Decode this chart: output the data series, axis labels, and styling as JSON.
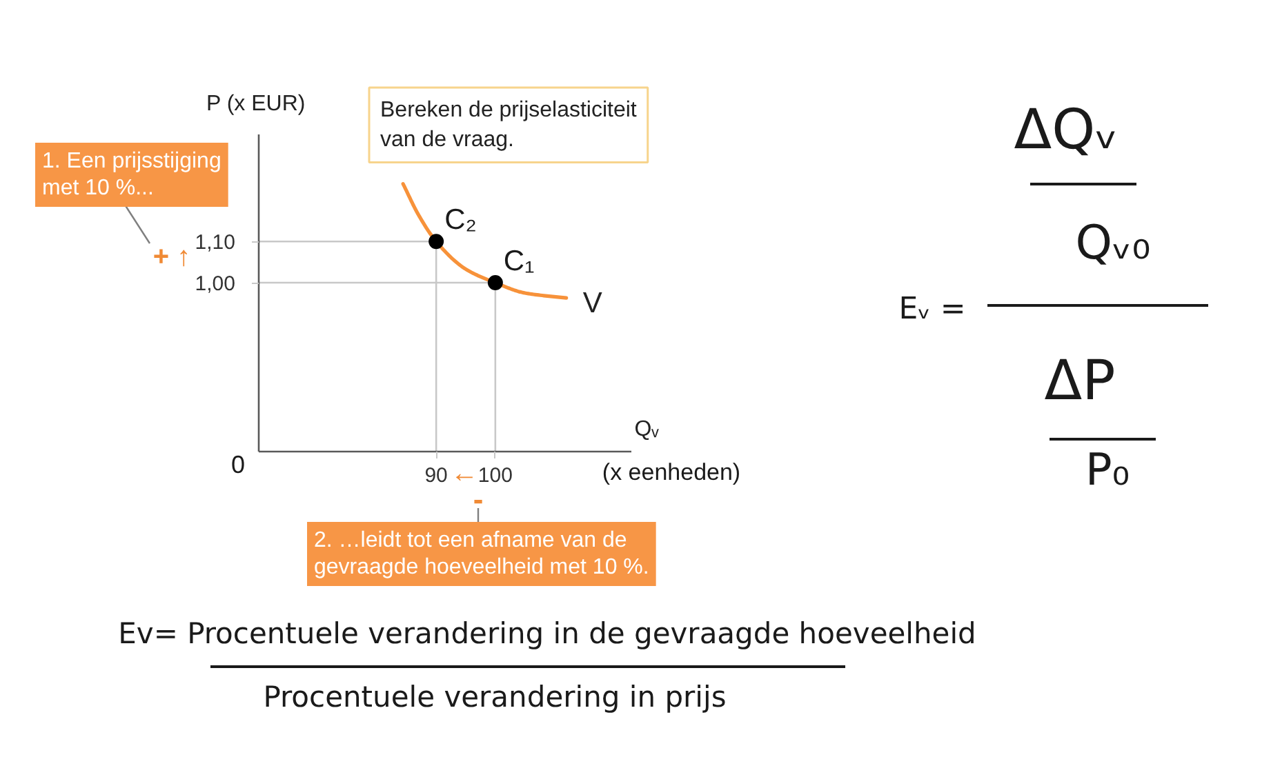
{
  "chart_data": {
    "type": "line",
    "xlabel": "Qᵥ",
    "ylabel": "P (x EUR)",
    "xlim": [
      60,
      123
    ],
    "ylim": [
      0.59,
      1.36
    ],
    "xticks": [
      90,
      100
    ],
    "yticks": [
      {
        "value": 1.0,
        "label": "1,00"
      },
      {
        "value": 1.1,
        "label": "1,10"
      }
    ],
    "grid": false,
    "legend": false,
    "series": [
      {
        "name": "V",
        "color": "#f7923a",
        "x": [
          84.4,
          87,
          90,
          95,
          100,
          105,
          112
        ],
        "values": [
          1.24,
          1.165,
          1.1,
          1.033,
          1.0,
          0.975,
          0.963
        ]
      },
      {
        "type": "scatter",
        "marker": "circle",
        "color": "#000000",
        "x": [
          90,
          100
        ],
        "values": [
          1.1,
          1.0
        ]
      }
    ],
    "ref_lines": [
      {
        "axis": "y",
        "value": 1.1,
        "color": "#c8c8c8"
      },
      {
        "axis": "y",
        "value": 1.0,
        "color": "#c8c8c8"
      },
      {
        "axis": "x",
        "value": 90,
        "color": "#c8c8c8"
      },
      {
        "axis": "x",
        "value": 100,
        "color": "#c8c8c8"
      }
    ],
    "annotations": [
      "1. Een prijsstijging\nmet 10 %...",
      "Bereken de prijselasticiteit\nvan de vraag.",
      "0",
      "(x eenheden)",
      "2. …leidt tot een afname van de\ngevraagde hoeveelheid met 10 %.",
      "Eᵥ =",
      "ΔQᵥ",
      "Qᵥ₀",
      "ΔP",
      "P₀",
      "Ev= Procentuele verandering in de gevraagde hoeveelheid",
      "Procentuele verandering in prijs",
      "+ ↑",
      "←",
      "-",
      {
        "text": "C₂",
        "x": 90,
        "y": 1.1
      },
      {
        "text": "C₁",
        "x": 100,
        "y": 1.0
      }
    ]
  }
}
